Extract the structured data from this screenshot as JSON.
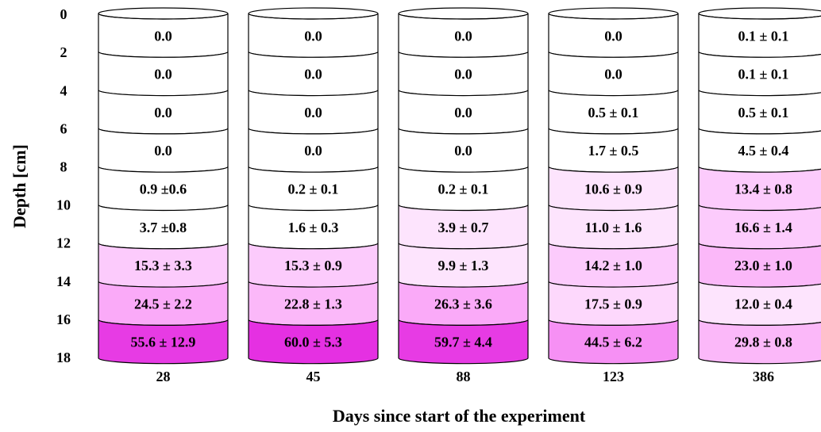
{
  "y_axis": {
    "title": "Depth [cm]",
    "ticks": [
      "0",
      "2",
      "4",
      "6",
      "8",
      "10",
      "12",
      "14",
      "16",
      "18"
    ]
  },
  "x_axis": {
    "title": "Days since start of the experiment"
  },
  "columns": [
    {
      "label": "28",
      "cells": [
        {
          "text": "0.0",
          "color": "#ffffff"
        },
        {
          "text": "0.0",
          "color": "#ffffff"
        },
        {
          "text": "0.0",
          "color": "#ffffff"
        },
        {
          "text": "0.0",
          "color": "#ffffff"
        },
        {
          "text": "0.9 ±0.6",
          "color": "#ffffff"
        },
        {
          "text": "3.7 ±0.8",
          "color": "#ffffff"
        },
        {
          "text": "15.3 ± 3.3",
          "color": "#fccbfc"
        },
        {
          "text": "24.5 ± 2.2",
          "color": "#faaaf8"
        },
        {
          "text": "55.6 ± 12.9",
          "color": "#e73be4"
        }
      ]
    },
    {
      "label": "45",
      "cells": [
        {
          "text": "0.0",
          "color": "#ffffff"
        },
        {
          "text": "0.0",
          "color": "#ffffff"
        },
        {
          "text": "0.0",
          "color": "#ffffff"
        },
        {
          "text": "0.0",
          "color": "#ffffff"
        },
        {
          "text": "0.2 ± 0.1",
          "color": "#ffffff"
        },
        {
          "text": "1.6 ± 0.3",
          "color": "#ffffff"
        },
        {
          "text": "15.3 ± 0.9",
          "color": "#fccbfc"
        },
        {
          "text": "22.8 ± 1.3",
          "color": "#fbb8f9"
        },
        {
          "text": "60.0 ± 5.3",
          "color": "#e530e2"
        }
      ]
    },
    {
      "label": "88",
      "cells": [
        {
          "text": "0.0",
          "color": "#ffffff"
        },
        {
          "text": "0.0",
          "color": "#ffffff"
        },
        {
          "text": "0.0",
          "color": "#ffffff"
        },
        {
          "text": "0.0",
          "color": "#ffffff"
        },
        {
          "text": "0.2 ± 0.1",
          "color": "#ffffff"
        },
        {
          "text": "3.9 ± 0.7",
          "color": "#fde4fd"
        },
        {
          "text": "9.9 ± 1.3",
          "color": "#fde4fd"
        },
        {
          "text": "26.3 ± 3.6",
          "color": "#faaaf8"
        },
        {
          "text": "59.7 ± 4.4",
          "color": "#e73be4"
        }
      ]
    },
    {
      "label": "123",
      "cells": [
        {
          "text": "0.0",
          "color": "#ffffff"
        },
        {
          "text": "0.0",
          "color": "#ffffff"
        },
        {
          "text": "0.5 ± 0.1",
          "color": "#ffffff"
        },
        {
          "text": "1.7 ± 0.5",
          "color": "#ffffff"
        },
        {
          "text": "10.6 ± 0.9",
          "color": "#fde4fd"
        },
        {
          "text": "11.0 ± 1.6",
          "color": "#fde4fd"
        },
        {
          "text": "14.2 ± 1.0",
          "color": "#fccbfc"
        },
        {
          "text": "17.5 ± 0.9",
          "color": "#fdd8fc"
        },
        {
          "text": "44.5 ± 6.2",
          "color": "#f690f4"
        }
      ]
    },
    {
      "label": "386",
      "cells": [
        {
          "text": "0.1 ± 0.1",
          "color": "#ffffff"
        },
        {
          "text": "0.1 ± 0.1",
          "color": "#ffffff"
        },
        {
          "text": "0.5 ± 0.1",
          "color": "#ffffff"
        },
        {
          "text": "4.5 ± 0.4",
          "color": "#ffffff"
        },
        {
          "text": "13.4 ± 0.8",
          "color": "#fccbfc"
        },
        {
          "text": "16.6 ± 1.4",
          "color": "#fccbfc"
        },
        {
          "text": "23.0 ± 1.0",
          "color": "#fbb8f9"
        },
        {
          "text": "12.0 ± 0.4",
          "color": "#fde4fd"
        },
        {
          "text": "29.8 ± 0.8",
          "color": "#fbb8f9"
        }
      ]
    }
  ]
}
